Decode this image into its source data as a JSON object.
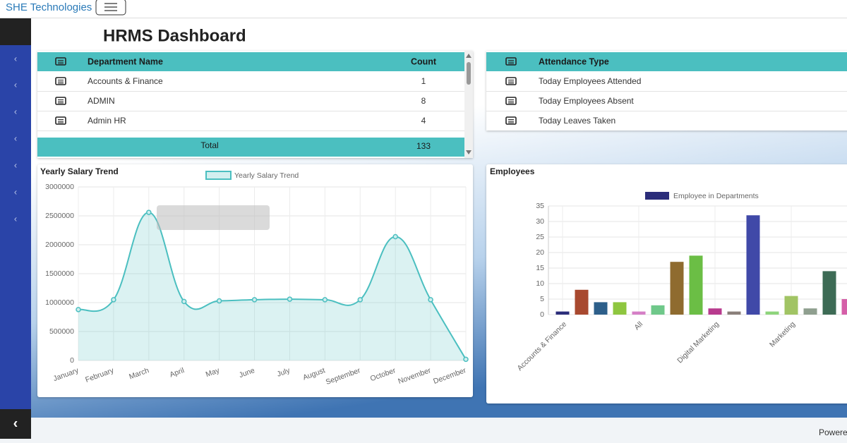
{
  "navbar": {
    "brand": "SHE Technologies"
  },
  "page_title": "HRMS Dashboard",
  "department_table": {
    "headers": [
      "Department Name",
      "Count"
    ],
    "rows": [
      [
        "Accounts & Finance",
        1
      ],
      [
        "ADMIN",
        8
      ],
      [
        "Admin HR",
        4
      ]
    ],
    "total": [
      "Total",
      133
    ]
  },
  "attendance_table": {
    "header": "Attendance Type",
    "rows": [
      "Today Employees Attended",
      "Today Employees Absent",
      "Today Leaves Taken"
    ]
  },
  "footer": {
    "text": "Powere"
  },
  "chart_data": [
    {
      "type": "line",
      "title": "Yearly Salary Trend",
      "fill": true,
      "grid": true,
      "categories": [
        "January",
        "February",
        "March",
        "April",
        "May",
        "June",
        "July",
        "August",
        "September",
        "October",
        "November",
        "December"
      ],
      "series": [
        {
          "name": "Yearly Salary Trend",
          "color": "#4bbfc0",
          "values": [
            880000,
            1050000,
            2560000,
            1020000,
            1030000,
            1050000,
            1060000,
            1050000,
            1050000,
            2140000,
            1050000,
            20000
          ]
        }
      ],
      "ylim": [
        0,
        3000000
      ],
      "yticks": [
        0,
        500000,
        1000000,
        1500000,
        2000000,
        2500000,
        3000000
      ]
    },
    {
      "type": "bar",
      "title": "Employees",
      "grid": true,
      "categories": [
        "Accounts & Finance",
        null,
        null,
        null,
        "All",
        null,
        null,
        null,
        "Digital Marketing",
        null,
        null,
        null,
        "Marketing",
        null,
        null,
        null
      ],
      "series": [
        {
          "name": "Employee in Departments",
          "color": "#2b2d7a",
          "colors": [
            "#2b2d7a",
            "#a8492f",
            "#2d5f8a",
            "#8ec63f",
            "#d57fc6",
            "#6fc88a",
            "#8f6b2f",
            "#6bbe45",
            "#b83b8e",
            "#8a7f7a",
            "#4049a8",
            "#8ed47c",
            "#a1c464",
            "#8f9f8f",
            "#3d6b55",
            "#d55fa8"
          ],
          "values": [
            1,
            8,
            4,
            4,
            1,
            3,
            17,
            19,
            2,
            1,
            32,
            1,
            6,
            2,
            14,
            5
          ]
        }
      ],
      "ylim": [
        0,
        35
      ],
      "yticks": [
        0,
        5,
        10,
        15,
        20,
        25,
        30,
        35
      ]
    }
  ]
}
